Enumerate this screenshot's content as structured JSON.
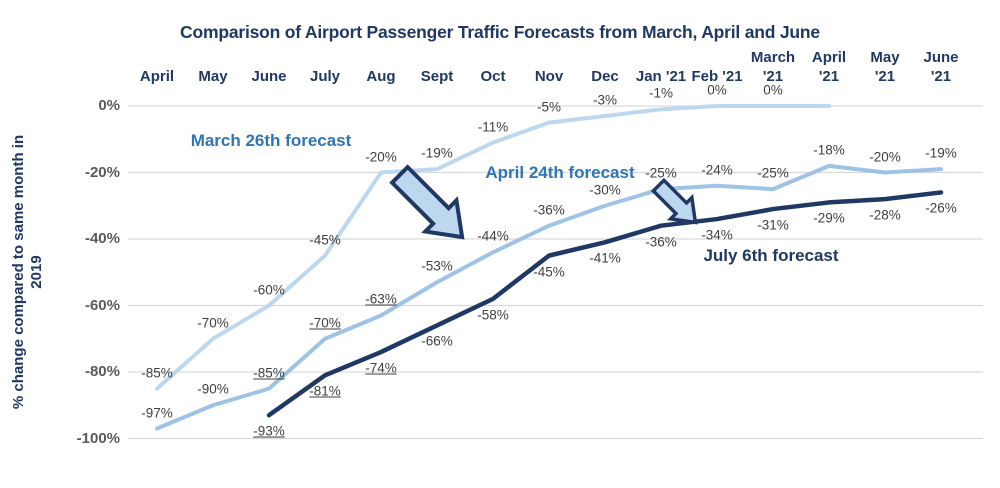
{
  "chart_data": {
    "type": "line",
    "title": "Comparison of Airport Passenger Traffic Forecasts from March, April and June",
    "ylabel": "% change compared to same month in 2019",
    "ylabel_lines": [
      "% change compared to same month in",
      "2019"
    ],
    "y_ticks": [
      "0%",
      "-20%",
      "-40%",
      "-60%",
      "-80%",
      "-100%"
    ],
    "ylim": [
      -100,
      0
    ],
    "grid": true,
    "legend": "none",
    "categories": [
      "April",
      "May",
      "June",
      "July",
      "Aug",
      "Sept",
      "Oct",
      "Nov",
      "Dec",
      "Jan '21",
      "Feb '21",
      "March '21",
      "April '21",
      "May '21",
      "June '21"
    ],
    "series": [
      {
        "name": "March 26th forecast",
        "color": "#BDD7EE",
        "stroke_width": 4,
        "label_side": "above",
        "values": [
          -85,
          -70,
          -60,
          -45,
          -20,
          -19,
          -11,
          -5,
          -3,
          -1,
          0,
          0,
          0,
          null,
          null
        ],
        "underlined_indices": [],
        "hidden_label_indices": [
          12
        ]
      },
      {
        "name": "April 24th forecast",
        "color": "#9DC3E6",
        "stroke_width": 4,
        "label_side": "above",
        "values": [
          -97,
          -90,
          -85,
          -70,
          -63,
          -53,
          -44,
          -36,
          -30,
          -25,
          -24,
          -25,
          -18,
          -20,
          -19
        ],
        "underlined_indices": [
          2,
          3,
          4
        ],
        "hidden_label_indices": []
      },
      {
        "name": "July 6th forecast",
        "color": "#1F3864",
        "stroke_width": 4.5,
        "label_side": "below",
        "values": [
          null,
          null,
          -93,
          -81,
          -74,
          -66,
          -58,
          -45,
          -41,
          -36,
          -34,
          -31,
          -29,
          -28,
          -26
        ],
        "underlined_indices": [
          2,
          3,
          4
        ],
        "hidden_label_indices": []
      }
    ],
    "annotations": [
      {
        "text": "March 26th forecast",
        "color": "#2E75B6"
      },
      {
        "text": "April 24th forecast",
        "color": "#2E75B6"
      },
      {
        "text": "July 6th forecast",
        "color": "#1F3864"
      }
    ],
    "arrow_icon": {
      "direction": "down-right",
      "count": 2,
      "fill": "#BDD7EE",
      "stroke": "#1F3864"
    },
    "layout": {
      "two_line_month_from_index": 11
    }
  },
  "colors": {
    "title": "#1F3864",
    "month_labels": "#1F3864",
    "tick_labels": "#595959",
    "data_labels": "#3F3F3F",
    "gridline": "#D9D9D9",
    "background": "#FFFFFF"
  }
}
